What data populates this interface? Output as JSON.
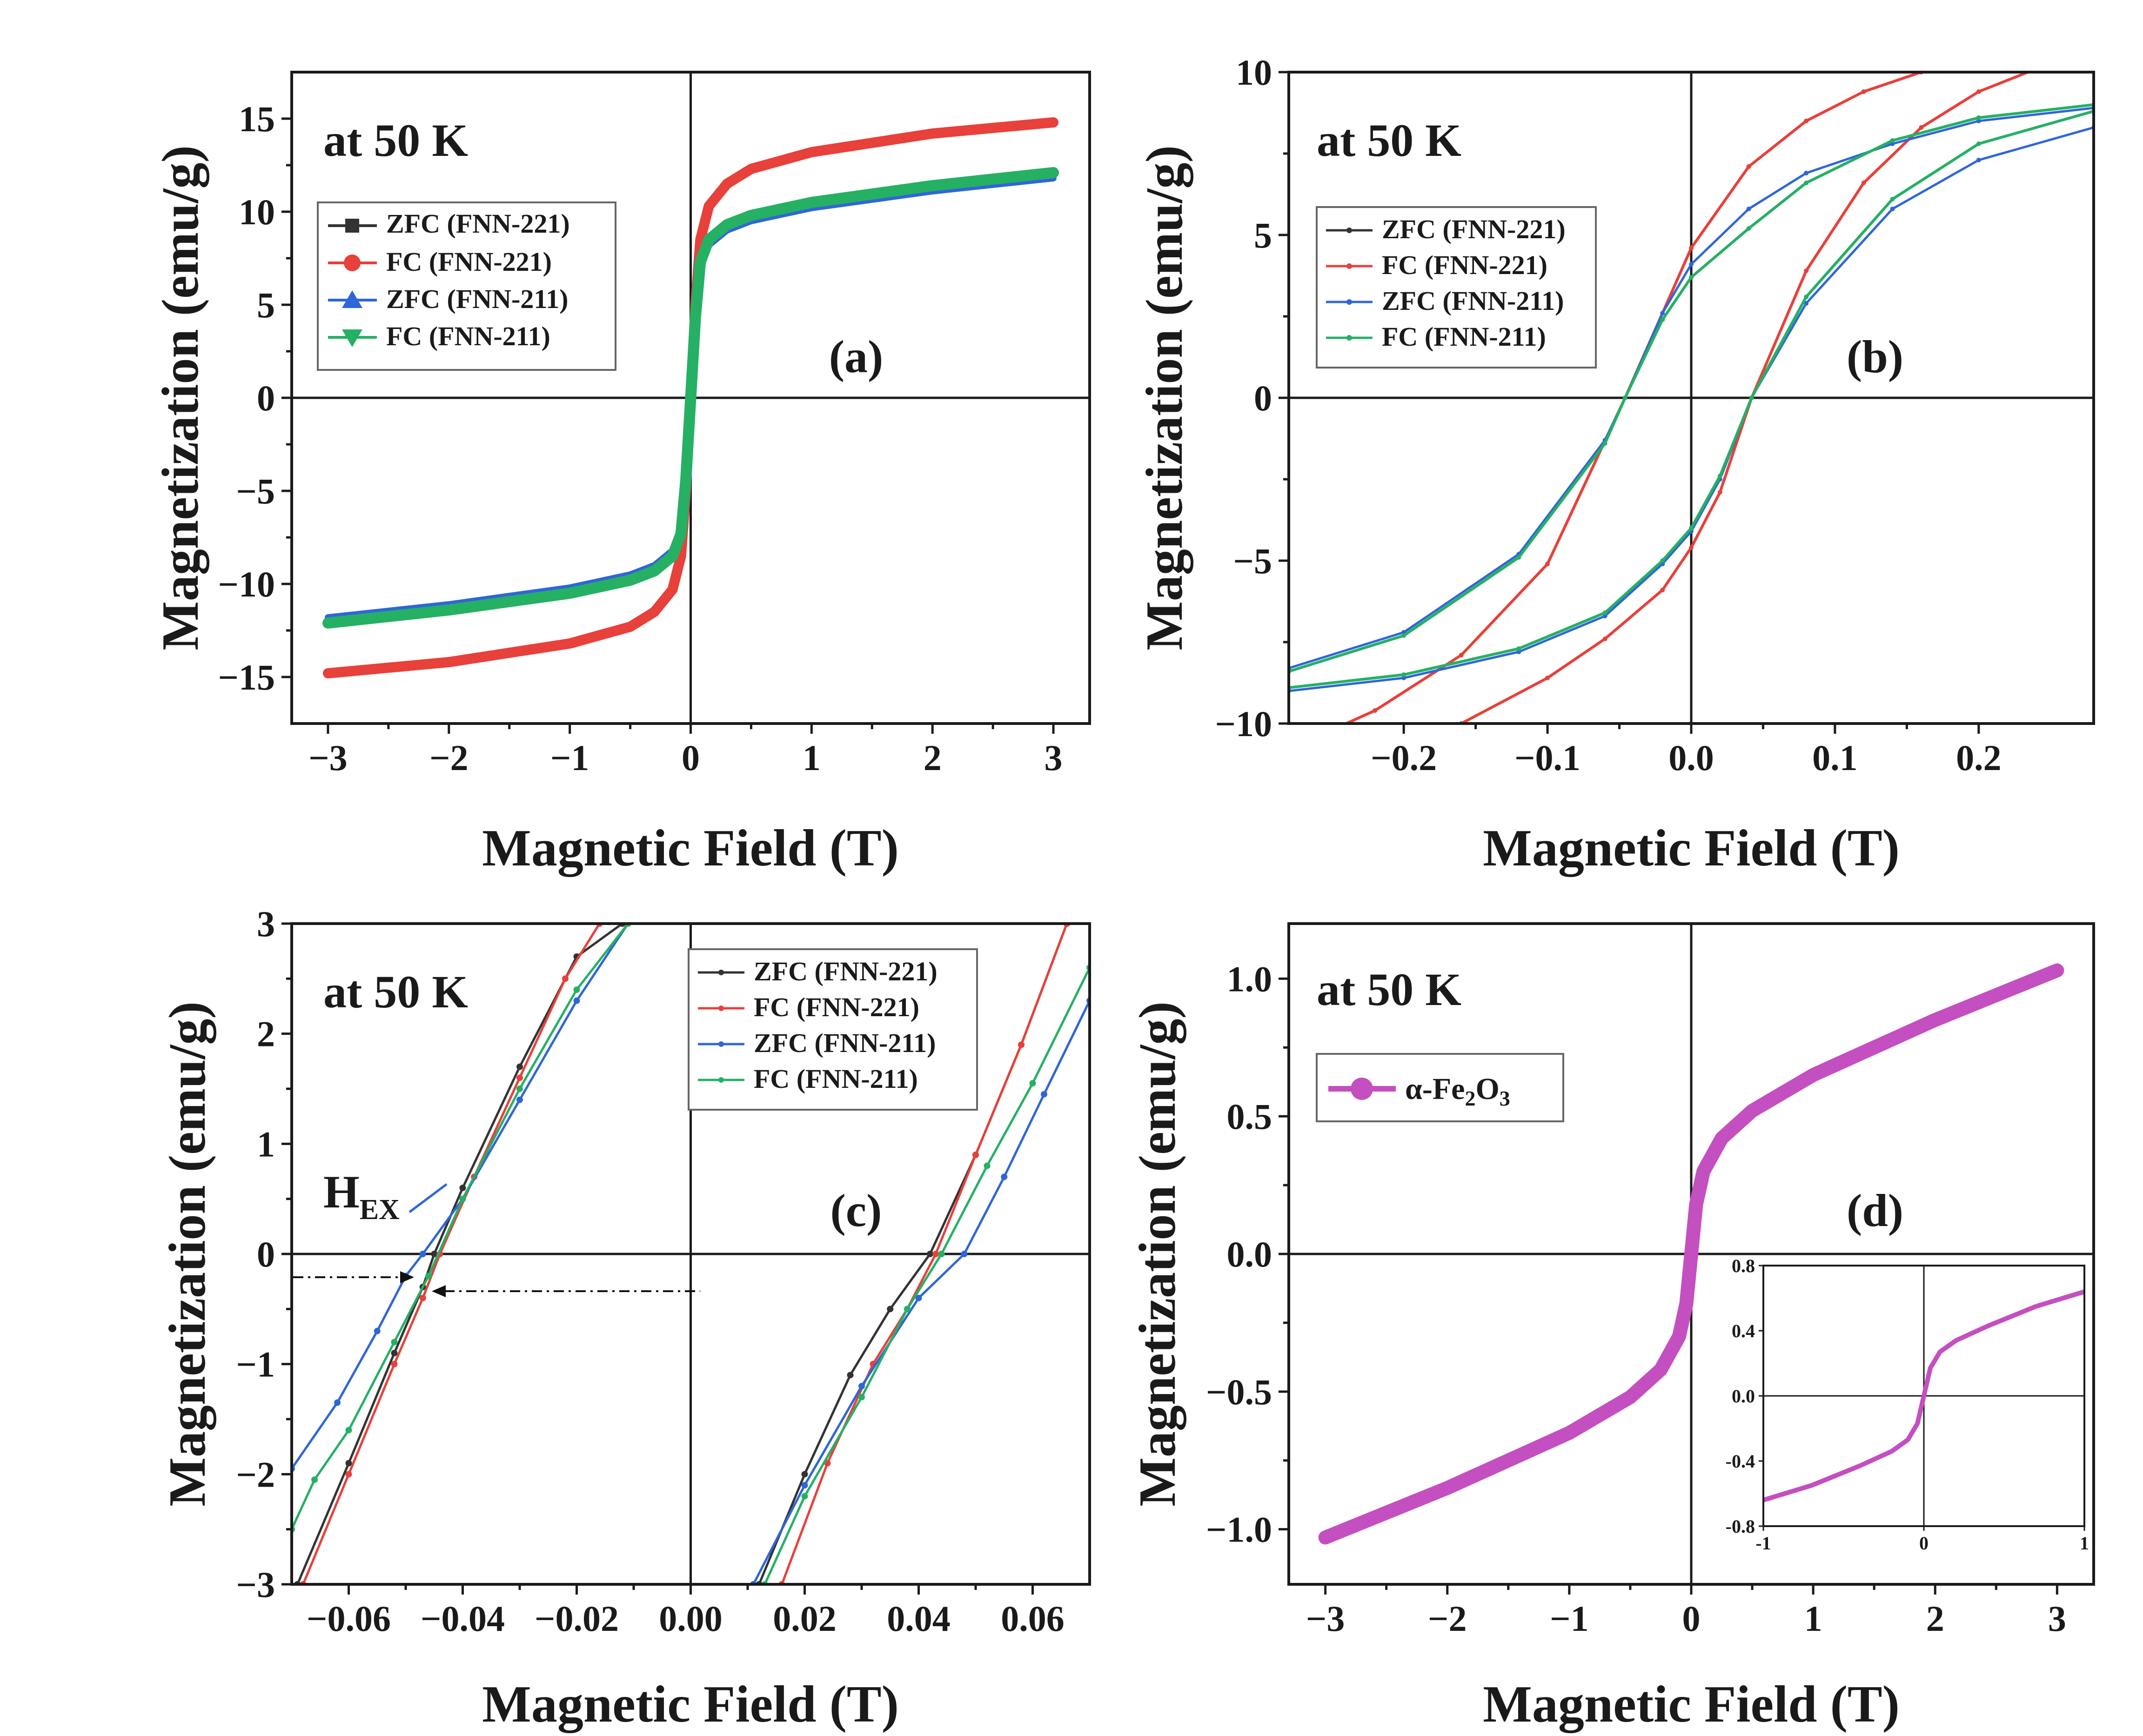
{
  "figure": {
    "temperature_label": "at 50 K"
  },
  "colors": {
    "zfc_221": "#333333",
    "fc_221": "#e8403a",
    "zfc_211": "#2f66d8",
    "fc_211": "#25b064",
    "fe2o3": "#c44fc0"
  },
  "chart_data": [
    {
      "id": "a",
      "type": "line",
      "panel_label": "(a)",
      "title": "at 50 K",
      "xlabel": "Magnetic Field (T)",
      "ylabel": "Magnetization (emu/g)",
      "xlim": [
        -3.3,
        3.3
      ],
      "ylim": [
        -17.5,
        17.5
      ],
      "xticks": [
        -3,
        -2,
        -1,
        0,
        1,
        2,
        3
      ],
      "xtick_labels": [
        "−3",
        "−2",
        "−1",
        "0",
        "1",
        "2",
        "3"
      ],
      "yticks": [
        -15,
        -10,
        -5,
        0,
        5,
        10,
        15
      ],
      "ytick_labels": [
        "−15",
        "−10",
        "−5",
        "0",
        "5",
        "10",
        "15"
      ],
      "legend": [
        "ZFC (FNN-221)",
        "FC (FNN-221)",
        "ZFC (FNN-211)",
        "FC (FNN-211)"
      ],
      "legend_markers": [
        "square",
        "circle",
        "triangle-up",
        "triangle-down"
      ],
      "series": [
        {
          "name": "ZFC (FNN-221)",
          "color_key": "zfc_221",
          "width": 14,
          "x": [
            -3,
            -2,
            -1,
            -0.5,
            -0.3,
            -0.15,
            -0.08,
            -0.04,
            0,
            0.04,
            0.08,
            0.15,
            0.3,
            0.5,
            1,
            2,
            3
          ],
          "y": [
            -14.8,
            -14.2,
            -13.2,
            -12.3,
            -11.5,
            -10.3,
            -8.5,
            -5,
            0,
            5,
            8.5,
            10.3,
            11.5,
            12.3,
            13.2,
            14.2,
            14.8
          ]
        },
        {
          "name": "FC (FNN-221)",
          "color_key": "fc_221",
          "width": 22,
          "x": [
            -3,
            -2,
            -1,
            -0.5,
            -0.3,
            -0.15,
            -0.08,
            -0.04,
            0,
            0.04,
            0.08,
            0.15,
            0.3,
            0.5,
            1,
            2,
            3
          ],
          "y": [
            -14.8,
            -14.2,
            -13.2,
            -12.3,
            -11.5,
            -10.3,
            -8.5,
            -5,
            0,
            5,
            8.5,
            10.3,
            11.5,
            12.3,
            13.2,
            14.2,
            14.8
          ]
        },
        {
          "name": "ZFC (FNN-211)",
          "color_key": "zfc_211",
          "width": 14,
          "x": [
            -3,
            -2,
            -1,
            -0.5,
            -0.3,
            -0.15,
            -0.08,
            -0.04,
            0,
            0.04,
            0.08,
            0.15,
            0.3,
            0.5,
            1,
            2,
            3
          ],
          "y": [
            -11.8,
            -11.1,
            -10.2,
            -9.5,
            -9.0,
            -8.2,
            -7.0,
            -4.2,
            0,
            4.2,
            7.0,
            8.2,
            9.0,
            9.5,
            10.2,
            11.1,
            11.8
          ]
        },
        {
          "name": "FC (FNN-211)",
          "color_key": "fc_211",
          "width": 24,
          "x": [
            -3,
            -2,
            -1,
            -0.5,
            -0.3,
            -0.15,
            -0.08,
            -0.04,
            0,
            0.04,
            0.08,
            0.15,
            0.3,
            0.5,
            1,
            2,
            3
          ],
          "y": [
            -12.1,
            -11.4,
            -10.5,
            -9.8,
            -9.3,
            -8.5,
            -7.3,
            -4.4,
            0,
            4.4,
            7.3,
            8.5,
            9.3,
            9.8,
            10.5,
            11.4,
            12.1
          ]
        }
      ]
    },
    {
      "id": "b",
      "type": "line",
      "panel_label": "(b)",
      "title": "at 50 K",
      "xlabel": "Magnetic Field (T)",
      "ylabel": "Magnetization (emu/g)",
      "xlim": [
        -0.28,
        0.28
      ],
      "ylim": [
        -10,
        10
      ],
      "xticks": [
        -0.2,
        -0.1,
        0,
        0.1,
        0.2
      ],
      "xtick_labels": [
        "−0.2",
        "−0.1",
        "0.0",
        "0.1",
        "0.2"
      ],
      "yticks": [
        -10,
        -5,
        0,
        5,
        10
      ],
      "ytick_labels": [
        "−10",
        "−5",
        "0",
        "5",
        "10"
      ],
      "legend": [
        "ZFC (FNN-221)",
        "FC (FNN-221)",
        "ZFC (FNN-211)",
        "FC (FNN-211)"
      ],
      "series": [
        {
          "name": "ZFC (FNN-221)",
          "color_key": "zfc_221",
          "width": 5,
          "x": [
            -0.28,
            -0.22,
            -0.16,
            -0.1,
            -0.046,
            0,
            0.04,
            0.08,
            0.12,
            0.16,
            0.2,
            0.24
          ],
          "y": [
            -10.8,
            -9.6,
            -7.9,
            -5.1,
            0,
            4.6,
            7.1,
            8.5,
            9.4,
            10,
            10.5,
            10.9
          ]
        },
        {
          "name": "FC (FNN-221)",
          "color_key": "fc_221",
          "width": 6,
          "x": [
            -0.28,
            -0.22,
            -0.16,
            -0.1,
            -0.046,
            0,
            0.04,
            0.08,
            0.12,
            0.16,
            0.2,
            0.24
          ],
          "y": [
            -10.8,
            -9.6,
            -7.9,
            -5.1,
            0,
            4.6,
            7.1,
            8.5,
            9.4,
            10,
            10.5,
            10.9
          ]
        },
        {
          "name": "FC (FNN-221) descending",
          "color_key": "fc_221",
          "width": 6,
          "x": [
            -0.16,
            -0.1,
            -0.06,
            -0.02,
            0,
            0.02,
            0.042,
            0.08,
            0.12,
            0.16,
            0.2,
            0.24,
            0.28
          ],
          "y": [
            -10,
            -8.6,
            -7.4,
            -5.9,
            -4.6,
            -2.9,
            0,
            3.9,
            6.6,
            8.3,
            9.4,
            10.1,
            10.6
          ]
        },
        {
          "name": "ZFC (FNN-211)",
          "color_key": "zfc_211",
          "width": 5,
          "x": [
            -0.28,
            -0.2,
            -0.12,
            -0.06,
            -0.046,
            -0.02,
            0,
            0.04,
            0.08,
            0.14,
            0.2,
            0.28
          ],
          "y": [
            -8.3,
            -7.2,
            -4.8,
            -1.3,
            0,
            2.6,
            4.1,
            5.8,
            6.9,
            7.8,
            8.5,
            8.9
          ]
        },
        {
          "name": "ZFC (FNN-211) descending",
          "color_key": "zfc_211",
          "width": 5,
          "x": [
            -0.28,
            -0.2,
            -0.12,
            -0.06,
            -0.02,
            0,
            0.02,
            0.042,
            0.08,
            0.14,
            0.2,
            0.28
          ],
          "y": [
            -9.0,
            -8.6,
            -7.8,
            -6.7,
            -5.1,
            -4.1,
            -2.5,
            0,
            2.9,
            5.8,
            7.3,
            8.3
          ]
        },
        {
          "name": "FC (FNN-211)",
          "color_key": "fc_211",
          "width": 6,
          "x": [
            -0.28,
            -0.2,
            -0.12,
            -0.06,
            -0.046,
            -0.02,
            0,
            0.04,
            0.08,
            0.14,
            0.2,
            0.28
          ],
          "y": [
            -8.4,
            -7.3,
            -4.9,
            -1.4,
            0,
            2.4,
            3.7,
            5.2,
            6.6,
            7.9,
            8.6,
            9.0
          ]
        },
        {
          "name": "FC (FNN-211) descending",
          "color_key": "fc_211",
          "width": 6,
          "x": [
            -0.28,
            -0.2,
            -0.12,
            -0.06,
            -0.02,
            0,
            0.02,
            0.042,
            0.08,
            0.14,
            0.2,
            0.28
          ],
          "y": [
            -8.9,
            -8.5,
            -7.7,
            -6.6,
            -5.0,
            -4.0,
            -2.4,
            0,
            3.1,
            6.1,
            7.8,
            8.8
          ]
        }
      ]
    },
    {
      "id": "c",
      "type": "line",
      "panel_label": "(c)",
      "title": "at 50 K",
      "xlabel": "Magnetic Field (T)",
      "ylabel": "Magnetization (emu/g)",
      "xlim": [
        -0.07,
        0.07
      ],
      "ylim": [
        -3,
        3
      ],
      "xticks": [
        -0.06,
        -0.04,
        -0.02,
        0,
        0.02,
        0.04,
        0.06
      ],
      "xtick_labels": [
        "−0.06",
        "−0.04",
        "−0.02",
        "0.00",
        "0.02",
        "0.04",
        "0.06"
      ],
      "yticks": [
        -3,
        -2,
        -1,
        0,
        1,
        2,
        3
      ],
      "ytick_labels": [
        "−3",
        "−2",
        "−1",
        "0",
        "1",
        "2",
        "3"
      ],
      "legend": [
        "ZFC (FNN-221)",
        "FC (FNN-221)",
        "ZFC (FNN-211)",
        "FC (FNN-211)"
      ],
      "annotation": {
        "text": "H",
        "subscript": "EX"
      },
      "series": [
        {
          "name": "ZFC (FNN-221) left",
          "color_key": "zfc_221",
          "width": 5,
          "x": [
            -0.069,
            -0.06,
            -0.052,
            -0.047,
            -0.045,
            -0.04,
            -0.03,
            -0.02,
            -0.012
          ],
          "y": [
            -3.0,
            -1.9,
            -0.9,
            -0.3,
            0,
            0.6,
            1.7,
            2.7,
            3.0
          ]
        },
        {
          "name": "FC (FNN-221) left",
          "color_key": "fc_221",
          "width": 5,
          "x": [
            -0.068,
            -0.06,
            -0.052,
            -0.047,
            -0.044,
            -0.038,
            -0.03,
            -0.022,
            -0.016
          ],
          "y": [
            -3.0,
            -2.0,
            -1.0,
            -0.4,
            0,
            0.7,
            1.6,
            2.5,
            3.0
          ]
        },
        {
          "name": "ZFC (FNN-211) left",
          "color_key": "zfc_211",
          "width": 5,
          "x": [
            -0.07,
            -0.062,
            -0.055,
            -0.05,
            -0.047,
            -0.04,
            -0.03,
            -0.02,
            -0.011
          ],
          "y": [
            -1.95,
            -1.35,
            -0.7,
            -0.2,
            0,
            0.5,
            1.4,
            2.3,
            3.0
          ]
        },
        {
          "name": "FC (FNN-211) left",
          "color_key": "fc_211",
          "width": 5,
          "x": [
            -0.07,
            -0.066,
            -0.06,
            -0.052,
            -0.046,
            -0.04,
            -0.03,
            -0.02,
            -0.011
          ],
          "y": [
            -2.5,
            -2.05,
            -1.6,
            -0.8,
            -0.2,
            0.5,
            1.5,
            2.4,
            3.0
          ]
        },
        {
          "name": "ZFC (FNN-221) right",
          "color_key": "zfc_221",
          "width": 5,
          "x": [
            0.012,
            0.02,
            0.028,
            0.035,
            0.042,
            0.05,
            0.058,
            0.066
          ],
          "y": [
            -3.0,
            -2.0,
            -1.1,
            -0.5,
            0,
            0.9,
            1.9,
            3.0
          ]
        },
        {
          "name": "FC (FNN-221) right",
          "color_key": "fc_221",
          "width": 5,
          "x": [
            0.016,
            0.024,
            0.032,
            0.038,
            0.043,
            0.05,
            0.058,
            0.066
          ],
          "y": [
            -3.0,
            -1.9,
            -1.0,
            -0.5,
            0,
            0.9,
            1.9,
            3.0
          ]
        },
        {
          "name": "ZFC (FNN-211) right",
          "color_key": "zfc_211",
          "width": 5,
          "x": [
            0.011,
            0.02,
            0.03,
            0.04,
            0.048,
            0.055,
            0.062,
            0.07
          ],
          "y": [
            -3.0,
            -2.1,
            -1.2,
            -0.4,
            0,
            0.7,
            1.45,
            2.3
          ]
        },
        {
          "name": "FC (FNN-211) right",
          "color_key": "fc_211",
          "width": 5,
          "x": [
            0.013,
            0.02,
            0.03,
            0.038,
            0.044,
            0.052,
            0.06,
            0.07
          ],
          "y": [
            -3.0,
            -2.2,
            -1.3,
            -0.5,
            0,
            0.8,
            1.55,
            2.6
          ]
        }
      ]
    },
    {
      "id": "d",
      "type": "line",
      "panel_label": "(d)",
      "title": "at 50 K",
      "xlabel": "Magnetic Field (T)",
      "ylabel": "Magnetization (emu/g)",
      "xlim": [
        -3.3,
        3.3
      ],
      "ylim": [
        -1.2,
        1.2
      ],
      "xticks": [
        -3,
        -2,
        -1,
        0,
        1,
        2,
        3
      ],
      "xtick_labels": [
        "−3",
        "−2",
        "−1",
        "0",
        "1",
        "2",
        "3"
      ],
      "yticks": [
        -1.0,
        -0.5,
        0,
        0.5,
        1.0
      ],
      "ytick_labels": [
        "−1.0",
        "−0.5",
        "0.0",
        "0.5",
        "1.0"
      ],
      "legend": [
        "α-Fe2O3"
      ],
      "legend_formula": {
        "prefix": "α-Fe",
        "sub1": "2",
        "mid": "O",
        "sub2": "3"
      },
      "series": [
        {
          "name": "α-Fe2O3",
          "color_key": "fe2o3",
          "width": 30,
          "x": [
            -3,
            -2,
            -1,
            -0.5,
            -0.25,
            -0.1,
            -0.04,
            0,
            0.04,
            0.1,
            0.25,
            0.5,
            1,
            2,
            3
          ],
          "y": [
            -1.03,
            -0.85,
            -0.65,
            -0.52,
            -0.42,
            -0.3,
            -0.18,
            0,
            0.18,
            0.3,
            0.42,
            0.52,
            0.65,
            0.85,
            1.03
          ]
        }
      ],
      "inset": {
        "xlim": [
          -1,
          1
        ],
        "ylim": [
          -0.8,
          0.8
        ],
        "xticks": [
          -1,
          0,
          1
        ],
        "xtick_labels": [
          "-1",
          "0",
          "1"
        ],
        "yticks": [
          -0.8,
          -0.4,
          0,
          0.4,
          0.8
        ],
        "ytick_labels": [
          "-0.8",
          "-0.4",
          "0.0",
          "0.4",
          "0.8"
        ],
        "series": [
          {
            "name": "α-Fe2O3 inset",
            "color_key": "fe2o3",
            "width": 10,
            "x": [
              -1,
              -0.7,
              -0.4,
              -0.2,
              -0.1,
              -0.04,
              0,
              0.04,
              0.1,
              0.2,
              0.4,
              0.7,
              1
            ],
            "y": [
              -0.64,
              -0.55,
              -0.43,
              -0.34,
              -0.27,
              -0.17,
              0,
              0.17,
              0.27,
              0.34,
              0.43,
              0.55,
              0.64
            ]
          }
        ]
      }
    }
  ]
}
